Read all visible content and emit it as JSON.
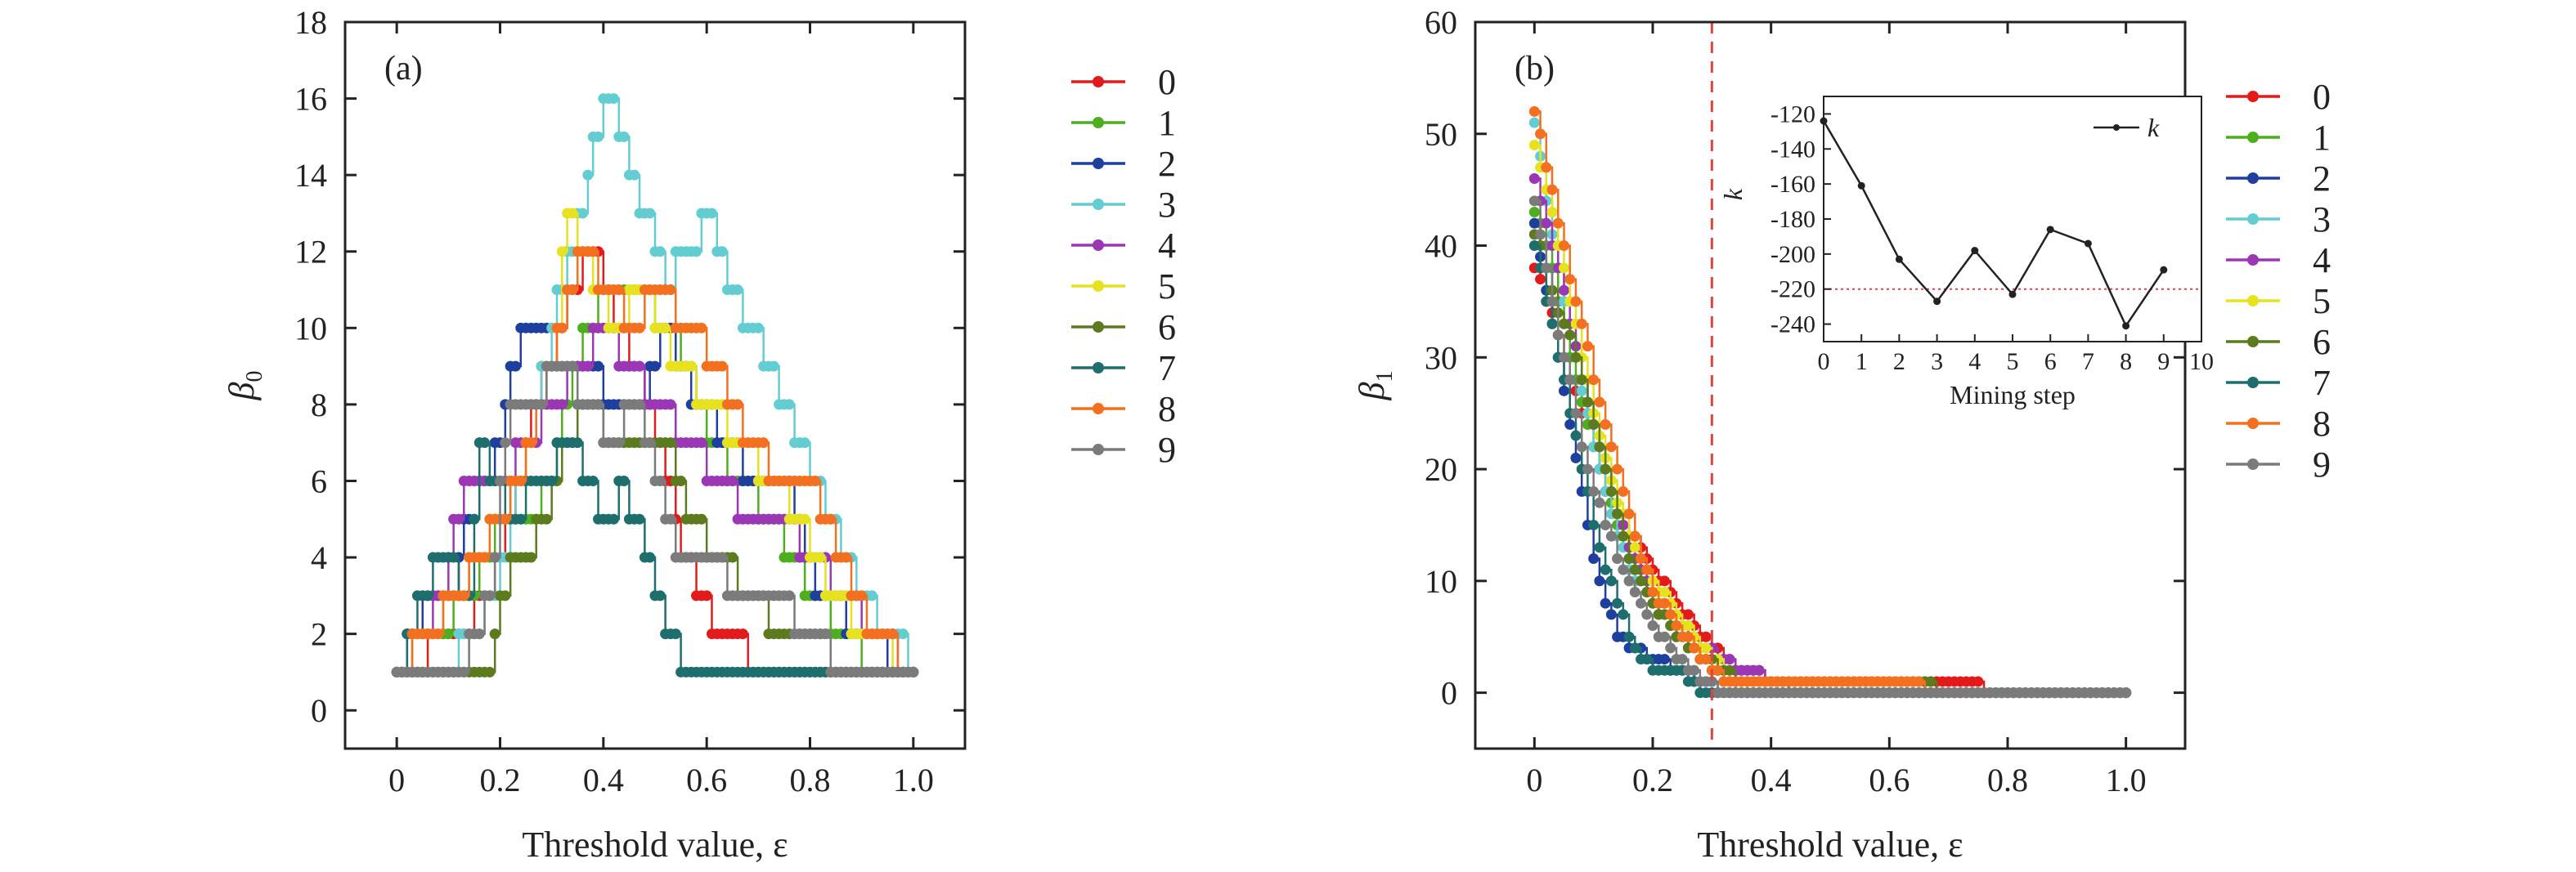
{
  "chart_data": [
    {
      "panel": "(a)",
      "type": "line",
      "xlabel": "Threshold value, ε",
      "ylabel_base": "β",
      "ylabel_sub": "0",
      "xlim": [
        -0.1,
        1.1
      ],
      "ylim": [
        -1,
        18
      ],
      "xticks": [
        "0",
        "0.2",
        "0.4",
        "0.6",
        "0.8",
        "1.0"
      ],
      "xtick_values": [
        0,
        0.2,
        0.4,
        0.6,
        0.8,
        1.0
      ],
      "yticks": [
        "0",
        "2",
        "4",
        "6",
        "8",
        "10",
        "12",
        "14",
        "16",
        "18"
      ],
      "ytick_values": [
        0,
        2,
        4,
        6,
        8,
        10,
        12,
        14,
        16,
        18
      ],
      "legend_position": "right",
      "series": [
        {
          "name": "0",
          "color": "#e31a1c",
          "x": [
            0,
            0.12,
            0.18,
            0.22,
            0.26,
            0.3,
            0.34,
            0.38,
            0.42,
            0.46,
            0.5,
            0.54,
            0.58,
            0.62,
            0.66,
            0.7,
            0.76,
            1.0
          ],
          "y": [
            1,
            2,
            3,
            5,
            8,
            9,
            11,
            12,
            10,
            9,
            7,
            5,
            3,
            2,
            2,
            1,
            1,
            1
          ]
        },
        {
          "name": "1",
          "color": "#4daf1e",
          "x": [
            0,
            0.03,
            0.08,
            0.14,
            0.2,
            0.26,
            0.3,
            0.34,
            0.4,
            0.46,
            0.52,
            0.56,
            0.6,
            0.66,
            0.72,
            0.8,
            0.86,
            0.94,
            1.0
          ],
          "y": [
            1,
            2,
            2,
            3,
            5,
            5,
            6,
            9,
            11,
            11,
            10,
            9,
            7,
            6,
            5,
            3,
            2,
            1,
            1
          ]
        },
        {
          "name": "2",
          "color": "#1f3f9f",
          "x": [
            0,
            0.06,
            0.1,
            0.14,
            0.2,
            0.24,
            0.28,
            0.32,
            0.36,
            0.42,
            0.48,
            0.52,
            0.58,
            0.64,
            0.7,
            0.76,
            0.82,
            0.9,
            0.98,
            1.0
          ],
          "y": [
            1,
            3,
            3,
            5,
            7,
            10,
            10,
            9,
            9,
            8,
            8,
            10,
            8,
            7,
            6,
            6,
            3,
            2,
            1,
            1
          ]
        },
        {
          "name": "3",
          "color": "#64cdd2",
          "x": [
            0,
            0.08,
            0.16,
            0.2,
            0.26,
            0.3,
            0.34,
            0.38,
            0.42,
            0.45,
            0.48,
            0.52,
            0.56,
            0.6,
            0.64,
            0.68,
            0.72,
            0.78,
            0.84,
            0.9,
            0.96,
            1.0
          ],
          "y": [
            1,
            1,
            2,
            4,
            7,
            10,
            12,
            15,
            16,
            14,
            13,
            11,
            12,
            13,
            11,
            10,
            9,
            7,
            5,
            3,
            2,
            1
          ]
        },
        {
          "name": "4",
          "color": "#9b36b5",
          "x": [
            0,
            0.06,
            0.14,
            0.2,
            0.26,
            0.3,
            0.36,
            0.4,
            0.44,
            0.5,
            0.56,
            0.62,
            0.68,
            0.74,
            0.8,
            0.86,
            0.92,
            1.0
          ],
          "y": [
            1,
            2,
            6,
            6,
            7,
            8,
            9,
            10,
            9,
            8,
            7,
            6,
            5,
            5,
            4,
            3,
            2,
            1
          ]
        },
        {
          "name": "5",
          "color": "#e7e21f",
          "x": [
            0,
            0.06,
            0.12,
            0.2,
            0.26,
            0.3,
            0.33,
            0.36,
            0.42,
            0.48,
            0.54,
            0.6,
            0.66,
            0.72,
            0.78,
            0.84,
            0.9,
            1.0
          ],
          "y": [
            1,
            2,
            3,
            5,
            7,
            9,
            13,
            12,
            10,
            11,
            9,
            8,
            7,
            6,
            5,
            3,
            2,
            1
          ]
        },
        {
          "name": "6",
          "color": "#5c7a1e",
          "x": [
            0,
            0.1,
            0.18,
            0.22,
            0.26,
            0.3,
            0.36,
            0.42,
            0.48,
            0.52,
            0.56,
            0.62,
            0.68,
            0.74,
            0.8,
            0.86,
            0.92,
            1.0
          ],
          "y": [
            1,
            1,
            1,
            4,
            4,
            6,
            8,
            7,
            7,
            7,
            5,
            4,
            3,
            2,
            2,
            1,
            1,
            1
          ]
        },
        {
          "name": "7",
          "color": "#1f6e6e",
          "x": [
            0,
            0.08,
            0.14,
            0.16,
            0.22,
            0.28,
            0.34,
            0.4,
            0.44,
            0.48,
            0.52,
            0.58,
            0.64,
            0.7,
            0.8,
            1.0
          ],
          "y": [
            1,
            4,
            3,
            7,
            5,
            6,
            7,
            5,
            6,
            4,
            2,
            1,
            1,
            1,
            1,
            1
          ]
        },
        {
          "name": "8",
          "color": "#f2701f",
          "x": [
            0,
            0.06,
            0.12,
            0.2,
            0.26,
            0.3,
            0.36,
            0.4,
            0.46,
            0.5,
            0.56,
            0.62,
            0.68,
            0.74,
            0.8,
            0.86,
            0.92,
            1.0
          ],
          "y": [
            1,
            2,
            3,
            5,
            7,
            9,
            12,
            11,
            10,
            11,
            10,
            9,
            7,
            6,
            6,
            4,
            2,
            1
          ]
        },
        {
          "name": "9",
          "color": "#7b7b7b",
          "x": [
            0,
            0.12,
            0.18,
            0.22,
            0.26,
            0.32,
            0.36,
            0.42,
            0.46,
            0.5,
            0.54,
            0.6,
            0.66,
            0.72,
            0.8,
            0.86,
            1.0
          ],
          "y": [
            1,
            1,
            3,
            8,
            8,
            9,
            8,
            7,
            8,
            6,
            4,
            4,
            3,
            3,
            2,
            1,
            1
          ]
        }
      ]
    },
    {
      "panel": "(b)",
      "type": "line",
      "xlabel": "Threshold value, ε",
      "ylabel_base": "β",
      "ylabel_sub": "1",
      "xlim": [
        -0.1,
        1.1
      ],
      "ylim": [
        -5,
        60
      ],
      "xticks": [
        "0",
        "0.2",
        "0.4",
        "0.6",
        "0.8",
        "1.0"
      ],
      "xtick_values": [
        0,
        0.2,
        0.4,
        0.6,
        0.8,
        1.0
      ],
      "yticks": [
        "0",
        "10",
        "20",
        "30",
        "40",
        "50",
        "60"
      ],
      "ytick_values": [
        0,
        10,
        20,
        30,
        40,
        50,
        60
      ],
      "reference_line_x": 0.3,
      "legend_position": "right",
      "series": [
        {
          "name": "0",
          "color": "#e31a1c",
          "x": [
            0,
            0.02,
            0.04,
            0.06,
            0.08,
            0.1,
            0.12,
            0.14,
            0.16,
            0.18,
            0.2,
            0.24,
            0.28,
            0.32,
            0.36,
            0.4,
            0.44,
            0.5,
            1.0
          ],
          "y": [
            38,
            35,
            32,
            28,
            25,
            22,
            18,
            16,
            14,
            13,
            11,
            8,
            5,
            3,
            2,
            1,
            1,
            1,
            0
          ]
        },
        {
          "name": "1",
          "color": "#4daf1e",
          "x": [
            0,
            0.02,
            0.04,
            0.06,
            0.08,
            0.1,
            0.12,
            0.14,
            0.16,
            0.18,
            0.2,
            0.24,
            0.28,
            0.32,
            0.36,
            1.0
          ],
          "y": [
            43,
            40,
            35,
            30,
            26,
            22,
            18,
            15,
            12,
            10,
            8,
            5,
            3,
            1,
            0,
            0
          ]
        },
        {
          "name": "2",
          "color": "#1f3f9f",
          "x": [
            0,
            0.02,
            0.04,
            0.06,
            0.08,
            0.1,
            0.12,
            0.14,
            0.16,
            0.2,
            0.24,
            0.28,
            0.32,
            1.0
          ],
          "y": [
            42,
            36,
            30,
            24,
            18,
            12,
            8,
            5,
            4,
            3,
            2,
            1,
            0,
            0
          ]
        },
        {
          "name": "3",
          "color": "#64cdd2",
          "x": [
            0,
            0.02,
            0.04,
            0.06,
            0.08,
            0.1,
            0.12,
            0.14,
            0.16,
            0.2,
            0.24,
            0.28,
            0.32,
            0.36,
            1.0
          ],
          "y": [
            51,
            44,
            38,
            32,
            27,
            22,
            18,
            14,
            11,
            8,
            5,
            3,
            1,
            0,
            0
          ]
        },
        {
          "name": "4",
          "color": "#9b36b5",
          "x": [
            0,
            0.02,
            0.04,
            0.06,
            0.08,
            0.1,
            0.12,
            0.14,
            0.16,
            0.18,
            0.2,
            0.24,
            0.28,
            0.32,
            0.36,
            0.4,
            0.44,
            1.0
          ],
          "y": [
            46,
            42,
            38,
            33,
            28,
            24,
            20,
            16,
            13,
            11,
            9,
            6,
            4,
            3,
            2,
            1,
            0,
            0
          ]
        },
        {
          "name": "5",
          "color": "#e7e21f",
          "x": [
            0,
            0.02,
            0.04,
            0.06,
            0.08,
            0.1,
            0.12,
            0.14,
            0.16,
            0.2,
            0.24,
            0.28,
            0.32,
            0.36,
            1.0
          ],
          "y": [
            49,
            45,
            40,
            35,
            30,
            25,
            21,
            17,
            14,
            10,
            7,
            4,
            2,
            0,
            0
          ]
        },
        {
          "name": "6",
          "color": "#5c7a1e",
          "x": [
            0,
            0.02,
            0.04,
            0.06,
            0.08,
            0.1,
            0.12,
            0.14,
            0.16,
            0.18,
            0.2,
            0.24,
            0.28,
            0.32,
            0.36,
            1.0
          ],
          "y": [
            41,
            38,
            34,
            32,
            28,
            24,
            20,
            16,
            12,
            10,
            8,
            5,
            3,
            2,
            1,
            0
          ]
        },
        {
          "name": "7",
          "color": "#1f6e6e",
          "x": [
            0,
            0.02,
            0.04,
            0.06,
            0.08,
            0.1,
            0.12,
            0.14,
            0.16,
            0.18,
            0.2,
            0.24,
            0.28,
            1.0
          ],
          "y": [
            40,
            35,
            30,
            25,
            20,
            15,
            11,
            8,
            5,
            3,
            2,
            2,
            0,
            0
          ]
        },
        {
          "name": "8",
          "color": "#f2701f",
          "x": [
            0,
            0.02,
            0.04,
            0.06,
            0.08,
            0.1,
            0.12,
            0.14,
            0.16,
            0.18,
            0.2,
            0.24,
            0.28,
            0.32,
            1.0
          ],
          "y": [
            52,
            47,
            42,
            37,
            33,
            28,
            24,
            20,
            16,
            12,
            9,
            6,
            3,
            1,
            0
          ]
        },
        {
          "name": "9",
          "color": "#7b7b7b",
          "x": [
            0,
            0.02,
            0.04,
            0.06,
            0.08,
            0.1,
            0.12,
            0.14,
            0.16,
            0.2,
            0.24,
            0.28,
            0.32,
            1.0
          ],
          "y": [
            44,
            38,
            32,
            28,
            22,
            18,
            15,
            12,
            10,
            6,
            3,
            1,
            0,
            0
          ]
        }
      ],
      "inset": {
        "type": "line",
        "xlabel": "Mining step",
        "ylabel": "k",
        "legend_label": "k",
        "xlim": [
          0,
          10
        ],
        "ylim": [
          -250,
          -110
        ],
        "xticks": [
          "0",
          "1",
          "2",
          "3",
          "4",
          "5",
          "6",
          "7",
          "8",
          "9",
          "10"
        ],
        "xtick_values": [
          0,
          1,
          2,
          3,
          4,
          5,
          6,
          7,
          8,
          9,
          10
        ],
        "yticks": [
          "-120",
          "-140",
          "-160",
          "-180",
          "-200",
          "-220",
          "-240"
        ],
        "ytick_values": [
          -120,
          -140,
          -160,
          -180,
          -200,
          -220,
          -240
        ],
        "x": [
          0,
          1,
          2,
          3,
          4,
          5,
          6,
          7,
          8,
          9
        ],
        "y": [
          -124,
          -161,
          -203,
          -227,
          -198,
          -223,
          -186,
          -194,
          -241,
          -209
        ],
        "reference_line_y": -220,
        "color": "#222222",
        "reference_color": "#d9405a"
      }
    }
  ]
}
